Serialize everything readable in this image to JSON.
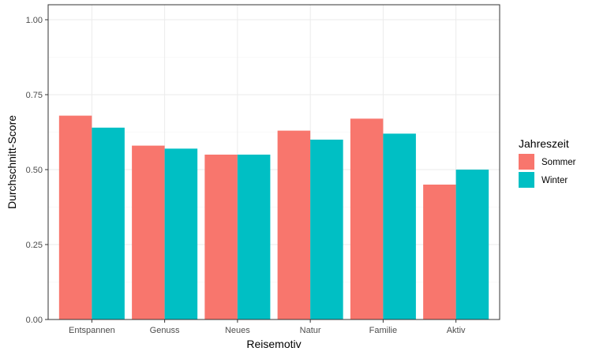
{
  "chart_data": {
    "type": "bar",
    "categories": [
      "Entspannen",
      "Genuss",
      "Neues",
      "Natur",
      "Familie",
      "Aktiv"
    ],
    "series": [
      {
        "name": "Sommer",
        "color": "#F8766D",
        "values": [
          0.68,
          0.58,
          0.55,
          0.63,
          0.67,
          0.45
        ]
      },
      {
        "name": "Winter",
        "color": "#00BFC4",
        "values": [
          0.64,
          0.57,
          0.55,
          0.6,
          0.62,
          0.5
        ]
      }
    ],
    "title": "",
    "xlabel": "Reisemotiv",
    "ylabel": "Durchschnitt-Score",
    "ylim": [
      0,
      1.05
    ],
    "yticks": [
      0.0,
      0.25,
      0.5,
      0.75,
      1.0
    ],
    "ytick_labels": [
      "0.00",
      "0.25",
      "0.50",
      "0.75",
      "1.00"
    ],
    "grid": true,
    "legend": {
      "title": "Jahreszeit",
      "position": "right"
    }
  }
}
